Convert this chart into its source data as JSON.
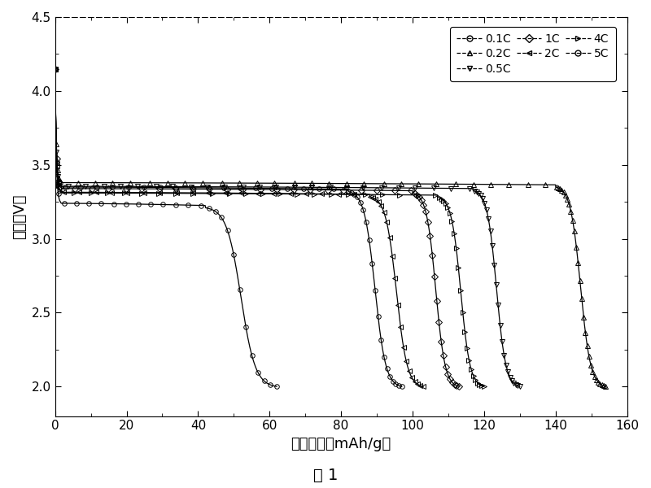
{
  "xlabel": "放电容量（mAh/g）",
  "ylabel": "电压（V）",
  "caption": "图 1",
  "xlim": [
    0,
    160
  ],
  "ylim": [
    1.8,
    4.5
  ],
  "xticks": [
    0,
    20,
    40,
    60,
    80,
    100,
    120,
    140,
    160
  ],
  "yticks": [
    2.0,
    2.5,
    3.0,
    3.5,
    4.0,
    4.5
  ],
  "curves": [
    {
      "label": "5C",
      "marker": "o",
      "cap_end": 62,
      "plateau": 3.24,
      "drop_start": 42,
      "n_markers": 30
    },
    {
      "label": "2C",
      "marker": "<",
      "cap_end": 103,
      "plateau": 3.32,
      "drop_start": 75,
      "n_markers": 40
    },
    {
      "label": "1C",
      "marker": "D",
      "cap_end": 112,
      "plateau": 3.34,
      "drop_start": 84,
      "n_markers": 44
    },
    {
      "label": "0.5C",
      "marker": "v",
      "cap_end": 126,
      "plateau": 3.355,
      "drop_start": 98,
      "n_markers": 50
    },
    {
      "label": "4C",
      "marker": ">",
      "cap_end": 120,
      "plateau": 3.31,
      "drop_start": 90,
      "n_markers": 48
    },
    {
      "label": "0.1C",
      "marker": "o",
      "cap_end": 100,
      "plateau": 3.35,
      "drop_start": 82,
      "n_markers": 40
    },
    {
      "label": "0.2C",
      "marker": "^",
      "cap_end": 154,
      "plateau": 3.38,
      "drop_start": 142,
      "n_markers": 60
    }
  ],
  "legend_entries": [
    {
      "label": "0.1C",
      "marker": "o"
    },
    {
      "label": "0.2C",
      "marker": "^"
    },
    {
      "label": "0.5C",
      "marker": "v"
    },
    {
      "label": "1C",
      "marker": "D"
    },
    {
      "label": "2C",
      "marker": "<"
    },
    {
      "label": "4C",
      "marker": ">"
    },
    {
      "label": "5C",
      "marker": "o"
    }
  ]
}
